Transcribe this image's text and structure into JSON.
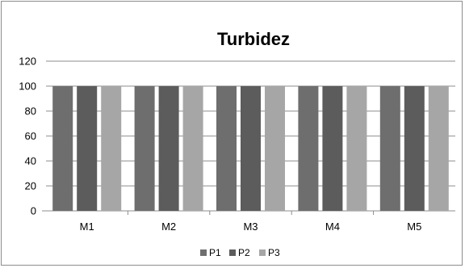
{
  "chart_data": {
    "type": "bar",
    "title": "Turbidez",
    "categories": [
      "M1",
      "M2",
      "M3",
      "M4",
      "M5"
    ],
    "series": [
      {
        "name": "P1",
        "values": [
          100,
          100,
          100,
          100,
          100
        ],
        "color": "#6e6e6e"
      },
      {
        "name": "P2",
        "values": [
          100,
          100,
          100,
          100,
          100
        ],
        "color": "#5c5c5c"
      },
      {
        "name": "P3",
        "values": [
          100,
          100,
          100,
          100,
          100
        ],
        "color": "#a6a6a6"
      }
    ],
    "ylim": [
      0,
      120
    ],
    "yticks": [
      "0",
      "20",
      "40",
      "60",
      "80",
      "100",
      "120"
    ],
    "grid": true,
    "legend": "bottom"
  }
}
